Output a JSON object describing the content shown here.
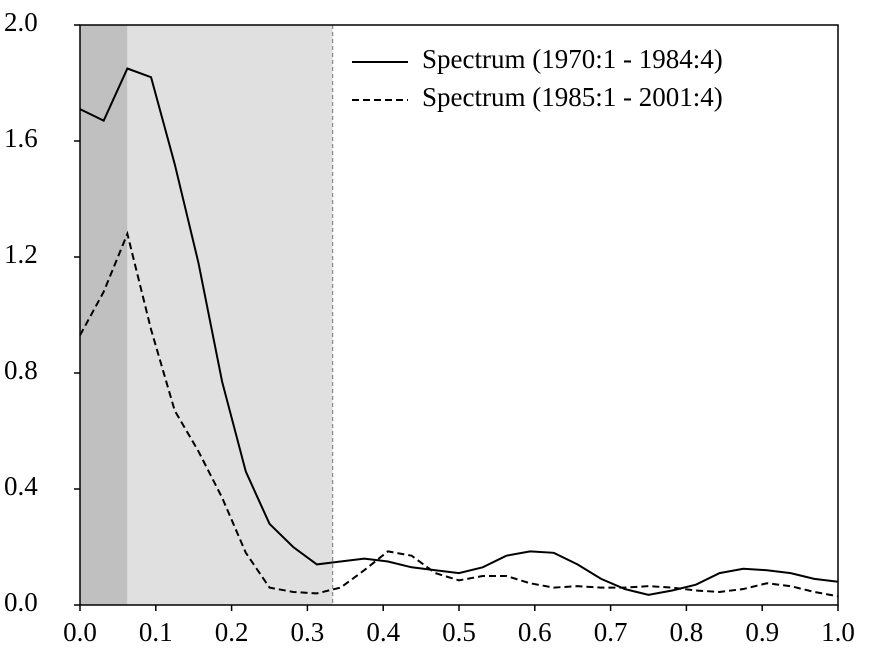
{
  "chart_data": {
    "type": "line",
    "x": [
      0,
      0.03125,
      0.0625,
      0.09375,
      0.125,
      0.15625,
      0.1875,
      0.21875,
      0.25,
      0.28125,
      0.3125,
      0.34375,
      0.375,
      0.40625,
      0.4375,
      0.46875,
      0.5,
      0.53125,
      0.5625,
      0.59375,
      0.625,
      0.65625,
      0.6875,
      0.71875,
      0.75,
      0.78125,
      0.8125,
      0.84375,
      0.875,
      0.90625,
      0.9375,
      0.96875,
      1.0
    ],
    "series": [
      {
        "name": "Spectrum (1970:1 - 1984:4)",
        "color": "#000000",
        "dash": "solid",
        "values": [
          1.71,
          1.67,
          1.85,
          1.82,
          1.52,
          1.18,
          0.77,
          0.46,
          0.28,
          0.2,
          0.14,
          0.15,
          0.16,
          0.15,
          0.13,
          0.12,
          0.11,
          0.13,
          0.17,
          0.185,
          0.18,
          0.14,
          0.09,
          0.055,
          0.035,
          0.05,
          0.07,
          0.11,
          0.125,
          0.12,
          0.11,
          0.09,
          0.08
        ]
      },
      {
        "name": "Spectrum (1985:1 - 2001:4)",
        "color": "#000000",
        "dash": "dashed",
        "values": [
          0.93,
          1.08,
          1.28,
          0.95,
          0.67,
          0.53,
          0.37,
          0.18,
          0.06,
          0.045,
          0.04,
          0.06,
          0.12,
          0.185,
          0.17,
          0.11,
          0.085,
          0.1,
          0.1,
          0.075,
          0.06,
          0.065,
          0.06,
          0.06,
          0.065,
          0.06,
          0.05,
          0.045,
          0.055,
          0.075,
          0.065,
          0.045,
          0.03
        ]
      }
    ],
    "shaded_regions": [
      {
        "x": [
          0,
          0.0625
        ],
        "color": "#c0c0c0"
      },
      {
        "x": [
          0.0625,
          0.3333
        ],
        "color": "#e0e0e0"
      }
    ],
    "vline": {
      "x": 0.3333,
      "color": "#888888"
    },
    "xlim": [
      0,
      1.0
    ],
    "ylim": [
      0,
      2.0
    ],
    "xticks": [
      {
        "value": 0,
        "label": "0.0"
      },
      0.1,
      0.2,
      0.3,
      0.4,
      0.5,
      0.6,
      0.7,
      0.8,
      0.9,
      {
        "value": 1.0,
        "label": "1.0"
      }
    ],
    "yticks": [
      {
        "value": 0,
        "label": "0.0"
      },
      0.4,
      0.8,
      1.2,
      1.6,
      {
        "value": 2.0,
        "label": "2.0"
      }
    ],
    "legend": "top-right"
  }
}
